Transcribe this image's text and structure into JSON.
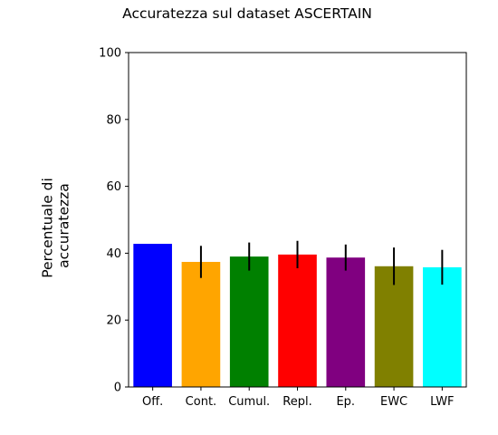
{
  "chart_data": {
    "type": "bar",
    "title": "Accuratezza sul dataset ASCERTAIN",
    "xlabel": "",
    "ylabel_lines": [
      "Percentuale di",
      "accuratezza"
    ],
    "ylim": [
      0,
      100
    ],
    "yticks": [
      0,
      20,
      40,
      60,
      80,
      100
    ],
    "grid": false,
    "categories": [
      "Off.",
      "Cont.",
      "Cumul.",
      "Repl.",
      "Ep.",
      "EWC",
      "LWF"
    ],
    "values": [
      42.8,
      37.4,
      39.0,
      39.6,
      38.7,
      36.1,
      35.8
    ],
    "errors": [
      0,
      4.8,
      4.2,
      4.1,
      3.9,
      5.6,
      5.2
    ],
    "colors": [
      "#0000ff",
      "#ffa500",
      "#008000",
      "#ff0000",
      "#800080",
      "#808000",
      "#00ffff"
    ]
  }
}
